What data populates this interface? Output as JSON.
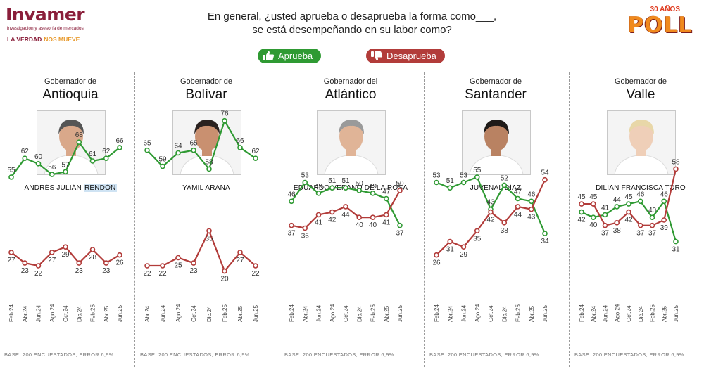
{
  "header": {
    "logo_name": "Invamer",
    "logo_sub": "investigación y asesoría de mercados",
    "slogan_a": "LA VERDAD",
    "slogan_b": "NOS MUEVE",
    "poll_years": "30 AÑOS",
    "poll_word": "POLL",
    "question_line1": "En general, ¿usted aprueba o desaprueba la forma como___,",
    "question_line2": "se está desempeñando en su labor como?"
  },
  "legend": {
    "approve": "Aprueba",
    "disapprove": "Desaprueba"
  },
  "colors": {
    "approve": "#2f9a33",
    "disapprove": "#b23c3a"
  },
  "panels": [
    {
      "subtitle": "Gobernador de",
      "title": "Antioquia",
      "person": [
        "ANDRÉS JULIÁN ",
        "RENDÓN"
      ],
      "base": "BASE: 200 ENCUESTADOS, ERROR 6,9%"
    },
    {
      "subtitle": "Gobernador de",
      "title": "Bolívar",
      "person": [
        "YAMIL ARANA",
        ""
      ],
      "base": "BASE: 200 ENCUESTADOS, ERROR 6,9%"
    },
    {
      "subtitle": "Gobernador del",
      "title": "Atlántico",
      "person": [
        "EDUARDO VERANO DE LA ROSA",
        ""
      ],
      "base": "BASE: 200 ENCUESTADOS, ERROR 6,9%"
    },
    {
      "subtitle": "Gobernador de",
      "title": "Santander",
      "person": [
        "JUVENAL DÍAZ",
        ""
      ],
      "base": "BASE: 200 ENCUESTADOS, ERROR 6,9%"
    },
    {
      "subtitle": "Gobernador de",
      "title": "Valle",
      "person": [
        "DILIAN FRANCISCA TORO",
        ""
      ],
      "base": "BASE: 200 ENCUESTADOS, ERROR 6,9%"
    }
  ],
  "chart_data": [
    {
      "type": "line",
      "title": "Antioquia",
      "categories": [
        "Feb.24",
        "Abr.24",
        "Jun.24",
        "Ago.24",
        "Oct.24",
        "Dic.24",
        "Feb.25",
        "Abr.25",
        "Jun.25"
      ],
      "series": [
        {
          "name": "Aprueba",
          "values": [
            55,
            62,
            60,
            56,
            57,
            68,
            61,
            62,
            66
          ]
        },
        {
          "name": "Desaprueba",
          "values": [
            27,
            23,
            22,
            27,
            29,
            23,
            28,
            23,
            26
          ]
        }
      ]
    },
    {
      "type": "line",
      "title": "Bolívar",
      "categories": [
        "Abr.24",
        "Jun.24",
        "Ago.24",
        "Oct.24",
        "Dic.24",
        "Feb.25",
        "Abr.25",
        "Jun.25"
      ],
      "series": [
        {
          "name": "Aprueba",
          "values": [
            65,
            59,
            64,
            65,
            58,
            76,
            66,
            62
          ]
        },
        {
          "name": "Desaprueba",
          "values": [
            22,
            22,
            25,
            23,
            35,
            20,
            27,
            22
          ]
        }
      ]
    },
    {
      "type": "line",
      "title": "Atlántico",
      "categories": [
        "Feb.24",
        "Abr.24",
        "Jun.24",
        "Ago.24",
        "Oct.24",
        "Dic.24",
        "Feb.25",
        "Abr.25",
        "Jun.25"
      ],
      "series": [
        {
          "name": "Aprueba",
          "values": [
            46,
            53,
            49,
            51,
            51,
            50,
            49,
            47,
            37
          ]
        },
        {
          "name": "Desaprueba",
          "values": [
            37,
            36,
            41,
            42,
            44,
            40,
            40,
            41,
            50
          ]
        }
      ]
    },
    {
      "type": "line",
      "title": "Santander",
      "categories": [
        "Feb.24",
        "Abr.24",
        "Jun.24",
        "Ago.24",
        "Oct.24",
        "Dic.24",
        "Feb.25",
        "Abr.25",
        "Jun.25"
      ],
      "series": [
        {
          "name": "Aprueba",
          "values": [
            53,
            51,
            53,
            55,
            43,
            52,
            47,
            46,
            34
          ]
        },
        {
          "name": "Desaprueba",
          "values": [
            26,
            31,
            29,
            35,
            42,
            38,
            44,
            43,
            54
          ]
        }
      ]
    },
    {
      "type": "line",
      "title": "Valle",
      "categories": [
        "Feb.24",
        "Abr.24",
        "Jun.24",
        "Ago.24",
        "Oct.24",
        "Dic.24",
        "Feb.25",
        "Abr.25",
        "Jun.25"
      ],
      "series": [
        {
          "name": "Aprueba",
          "values": [
            42,
            40,
            41,
            44,
            45,
            46,
            40,
            46,
            31
          ]
        },
        {
          "name": "Desaprueba",
          "values": [
            45,
            45,
            37,
            38,
            42,
            37,
            37,
            39,
            58
          ]
        }
      ]
    }
  ]
}
